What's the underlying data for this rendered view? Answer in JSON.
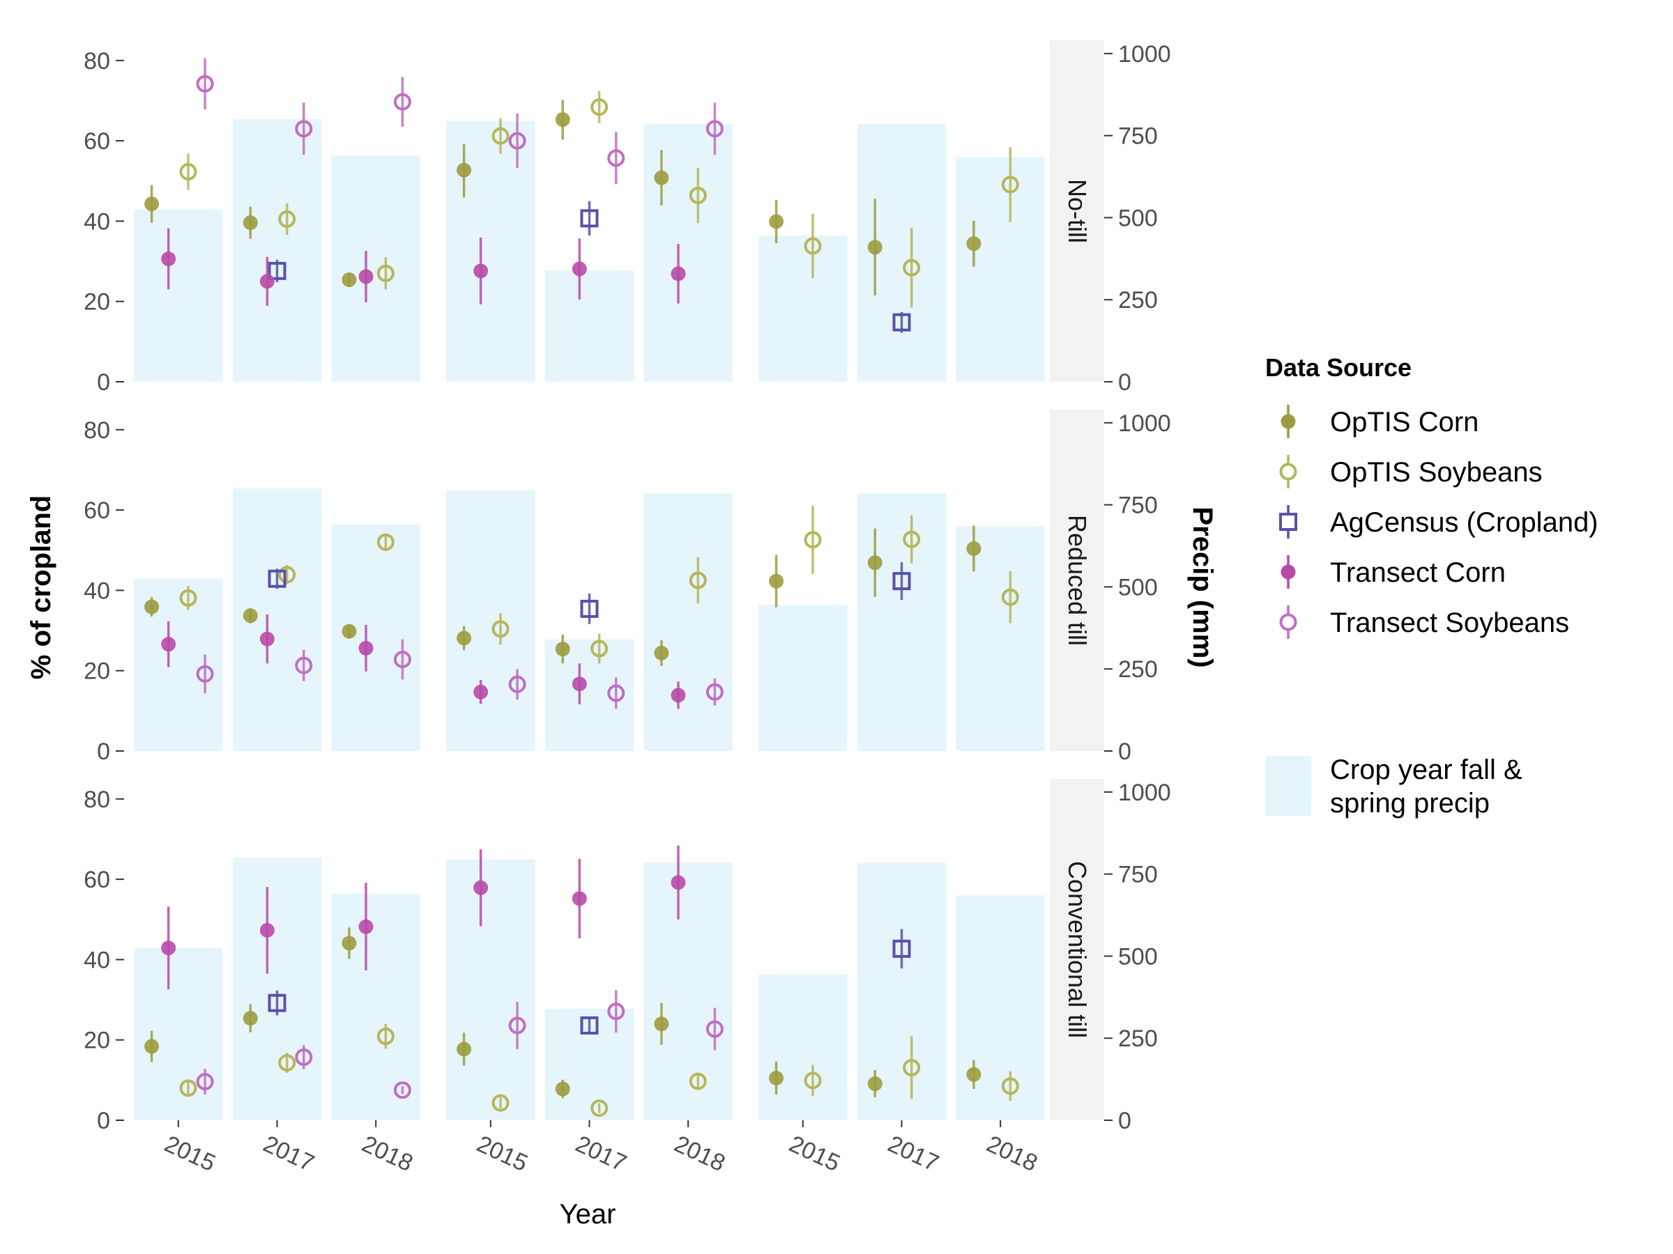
{
  "chart_data": {
    "type": "scatter",
    "title": "",
    "xlabel": "Year",
    "ylabel": "% of cropland",
    "y2label": "Precip (mm)",
    "ylim": [
      0,
      85
    ],
    "y2lim": [
      0,
      1040
    ],
    "yticks": [
      "0",
      "20",
      "40",
      "60",
      "80"
    ],
    "y2ticks": [
      "0",
      "250",
      "500",
      "750",
      "1000"
    ],
    "years": [
      "2015",
      "2017",
      "2018"
    ],
    "tillage_rows": [
      "No-till",
      "Reduced till",
      "Conventional till"
    ],
    "state_columns": 3,
    "precip_mm": [
      [
        525,
        800,
        690
      ],
      [
        795,
        340,
        785
      ],
      [
        445,
        785,
        685
      ]
    ],
    "legend_title": "Data Source",
    "series": [
      {
        "name": "OpTIS Corn",
        "color": "#9c9c3e",
        "shape": "filled-circle",
        "offset": -0.27,
        "values": [
          [
            [
              [
                44.3,
                39.6,
                49
              ],
              [
                39.6,
                35.6,
                43.6
              ],
              [
                25.4,
                23.6,
                27.2
              ]
            ],
            [
              [
                52.7,
                45.9,
                59.2
              ],
              [
                65.3,
                60.3,
                70.2
              ],
              [
                50.8,
                43.9,
                57.7
              ]
            ],
            [
              [
                39.9,
                34.5,
                45.3
              ],
              [
                33.5,
                21.5,
                45.6
              ],
              [
                34.4,
                28.7,
                40.1
              ]
            ]
          ],
          [
            [
              [
                35.9,
                33.5,
                38.3
              ],
              [
                33.7,
                31.8,
                35.6
              ],
              [
                29.8,
                28.1,
                31.5
              ]
            ],
            [
              [
                28.1,
                25.1,
                31.1
              ],
              [
                25.4,
                21.8,
                29
              ],
              [
                24.4,
                21.2,
                27.6
              ]
            ],
            [
              [
                42.3,
                35.8,
                48.8
              ],
              [
                46.9,
                38.4,
                55.4
              ],
              [
                50.4,
                44.7,
                56.1
              ]
            ]
          ],
          [
            [
              [
                18.4,
                14.5,
                22.3
              ],
              [
                25.4,
                21.9,
                28.9
              ],
              [
                44.1,
                40.2,
                48
              ]
            ],
            [
              [
                17.7,
                13.6,
                21.8
              ],
              [
                7.8,
                5.5,
                10.1
              ],
              [
                24,
                18.8,
                29.2
              ]
            ],
            [
              [
                10.5,
                6.4,
                14.6
              ],
              [
                9.1,
                5.7,
                12.5
              ],
              [
                11.4,
                7.8,
                15
              ]
            ]
          ]
        ]
      },
      {
        "name": "OpTIS Soybeans",
        "color": "#b6b65a",
        "shape": "open-circle",
        "offset": 0.1,
        "values": [
          [
            [
              [
                52.3,
                47.8,
                56.8
              ],
              [
                40.5,
                36.6,
                44.4
              ],
              [
                27,
                23,
                31
              ]
            ],
            [
              [
                61.2,
                56.8,
                65.6
              ],
              [
                68.4,
                64.4,
                72.4
              ],
              [
                46.4,
                39.5,
                53.3
              ]
            ],
            [
              [
                33.8,
                25.8,
                41.8
              ],
              [
                28.4,
                18.5,
                38.3
              ],
              [
                49.1,
                39.8,
                58.4
              ]
            ]
          ],
          [
            [
              [
                38.1,
                35.1,
                41.1
              ],
              [
                43.9,
                41.5,
                46.3
              ],
              [
                52,
                50.2,
                53.8
              ]
            ],
            [
              [
                30.4,
                26.5,
                34.3
              ],
              [
                25.5,
                21.8,
                29.2
              ],
              [
                42.5,
                36.7,
                48.3
              ]
            ],
            [
              [
                52.6,
                44.1,
                61.1
              ],
              [
                52.7,
                46.7,
                58.7
              ],
              [
                38.3,
                31.8,
                44.8
              ]
            ]
          ],
          [
            [
              [
                8,
                6.2,
                9.8
              ],
              [
                14.3,
                11.8,
                16.8
              ],
              [
                20.9,
                17.8,
                24
              ]
            ],
            [
              [
                4.3,
                2.9,
                5.7
              ],
              [
                3,
                1.8,
                4.2
              ],
              [
                9.7,
                8.1,
                11.3
              ]
            ],
            [
              [
                9.9,
                6,
                13.8
              ],
              [
                13.1,
                5.3,
                20.9
              ],
              [
                8.5,
                4.8,
                12.2
              ]
            ]
          ]
        ]
      },
      {
        "name": "AgCensus (Cropland)",
        "color": "#5a50a8",
        "shape": "open-square",
        "offset": 0,
        "values": [
          [
            [
              null,
              [
                27.6,
                24.8,
                30.4
              ],
              null
            ],
            [
              null,
              [
                40.7,
                36.4,
                45
              ],
              null
            ],
            [
              null,
              [
                14.8,
                12.2,
                17.4
              ],
              null
            ]
          ],
          [
            [
              null,
              [
                42.9,
                40.4,
                45.4
              ],
              null
            ],
            [
              null,
              [
                35.4,
                31.6,
                39.2
              ],
              null
            ],
            [
              null,
              [
                42.3,
                37.6,
                47
              ],
              null
            ]
          ],
          [
            [
              null,
              [
                29.2,
                26.1,
                32.3
              ],
              null
            ],
            [
              null,
              [
                23.6,
                21.5,
                25.7
              ],
              null
            ],
            [
              null,
              [
                42.7,
                37.8,
                47.6
              ],
              null
            ]
          ]
        ]
      },
      {
        "name": "Transect Corn",
        "color": "#b84aa8",
        "shape": "filled-circle",
        "offset": -0.1,
        "values": [
          [
            [
              [
                30.6,
                23,
                38.2
              ],
              [
                25,
                18.9,
                31.1
              ],
              [
                26.2,
                19.8,
                32.6
              ]
            ],
            [
              [
                27.6,
                19.3,
                35.9
              ],
              [
                28.1,
                20.5,
                35.7
              ],
              [
                26.9,
                19.5,
                34.3
              ]
            ],
            [
              null,
              null,
              null
            ]
          ],
          [
            [
              [
                26.6,
                20.9,
                32.3
              ],
              [
                27.9,
                21.8,
                34
              ],
              [
                25.6,
                19.8,
                31.4
              ]
            ],
            [
              [
                14.7,
                11.7,
                17.7
              ],
              [
                16.7,
                11.6,
                21.8
              ],
              [
                13.9,
                10.5,
                17.3
              ]
            ],
            [
              null,
              null,
              null
            ]
          ],
          [
            [
              [
                42.9,
                32.6,
                53.2
              ],
              [
                47.3,
                36.5,
                58.1
              ],
              [
                48.2,
                37.3,
                59.1
              ]
            ],
            [
              [
                57.9,
                48.3,
                67.5
              ],
              [
                55.2,
                45.3,
                65.1
              ],
              [
                59.2,
                50,
                68.4
              ]
            ],
            [
              null,
              null,
              null
            ]
          ]
        ]
      },
      {
        "name": "Transect Soybeans",
        "color": "#c06ec0",
        "shape": "open-circle",
        "offset": 0.27,
        "values": [
          [
            [
              [
                74.2,
                67.8,
                80.6
              ],
              [
                63,
                56.5,
                69.5
              ],
              [
                69.7,
                63.5,
                75.9
              ]
            ],
            [
              [
                60,
                53.2,
                66.8
              ],
              [
                55.7,
                49.2,
                62.2
              ],
              [
                63,
                56.5,
                69.5
              ]
            ],
            [
              null,
              null,
              null
            ]
          ],
          [
            [
              [
                19.2,
                14.4,
                24
              ],
              [
                21.3,
                17.4,
                25.2
              ],
              [
                22.8,
                17.8,
                27.8
              ]
            ],
            [
              [
                16.6,
                12.8,
                20.4
              ],
              [
                14.4,
                10.5,
                18.3
              ],
              [
                14.7,
                11.3,
                18.1
              ]
            ],
            [
              null,
              null,
              null
            ]
          ],
          [
            [
              [
                9.6,
                6.4,
                12.8
              ],
              [
                15.7,
                12.7,
                18.7
              ],
              [
                7.5,
                6.5,
                8.5
              ]
            ],
            [
              [
                23.6,
                17.7,
                29.5
              ],
              [
                27.1,
                21.8,
                32.4
              ],
              [
                22.7,
                17.4,
                28
              ]
            ],
            [
              null,
              null,
              null
            ]
          ]
        ]
      }
    ],
    "bar_legend_label": [
      "Crop year fall &",
      "spring precip"
    ],
    "bar_color": "#e6f5fc",
    "strip_color": "#f2f2f2"
  }
}
